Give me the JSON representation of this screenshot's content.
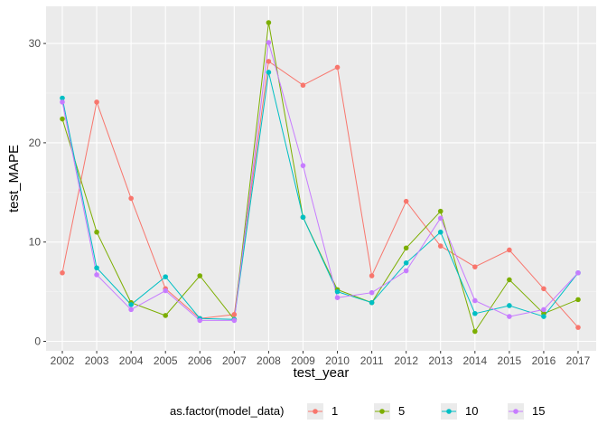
{
  "chart_data": {
    "type": "line",
    "title": "",
    "xlabel": "test_year",
    "ylabel": "test_MAPE",
    "categories": [
      "2002",
      "2003",
      "2004",
      "2005",
      "2006",
      "2007",
      "2008",
      "2009",
      "2010",
      "2011",
      "2012",
      "2013",
      "2014",
      "2015",
      "2016",
      "2017"
    ],
    "ylim": [
      0,
      32.3
    ],
    "yticks": [
      0,
      10,
      20,
      30
    ],
    "grid": true,
    "legend": {
      "title": "as.factor(model_data)",
      "placement": "bottom"
    },
    "series": [
      {
        "name": "1",
        "color": "#F8766D",
        "values": [
          6.9,
          24.1,
          14.4,
          5.3,
          2.3,
          2.7,
          28.2,
          25.8,
          27.6,
          6.6,
          14.1,
          9.6,
          7.5,
          9.2,
          5.3,
          1.4
        ]
      },
      {
        "name": "5",
        "color": "#7CAE00",
        "values": [
          22.4,
          11.0,
          3.9,
          2.6,
          6.6,
          2.2,
          32.1,
          12.5,
          5.2,
          3.9,
          9.4,
          13.1,
          1.0,
          6.2,
          2.8,
          4.2
        ]
      },
      {
        "name": "10",
        "color": "#00BFC4",
        "values": [
          24.5,
          7.4,
          3.7,
          6.5,
          2.3,
          2.2,
          27.1,
          12.5,
          5.0,
          3.9,
          7.9,
          11.0,
          2.8,
          3.6,
          2.5,
          6.9
        ]
      },
      {
        "name": "15",
        "color": "#C77CFF",
        "values": [
          24.1,
          6.7,
          3.2,
          5.1,
          2.1,
          2.1,
          30.1,
          17.7,
          4.4,
          4.9,
          7.1,
          12.4,
          4.1,
          2.5,
          3.2,
          6.9
        ]
      }
    ]
  }
}
